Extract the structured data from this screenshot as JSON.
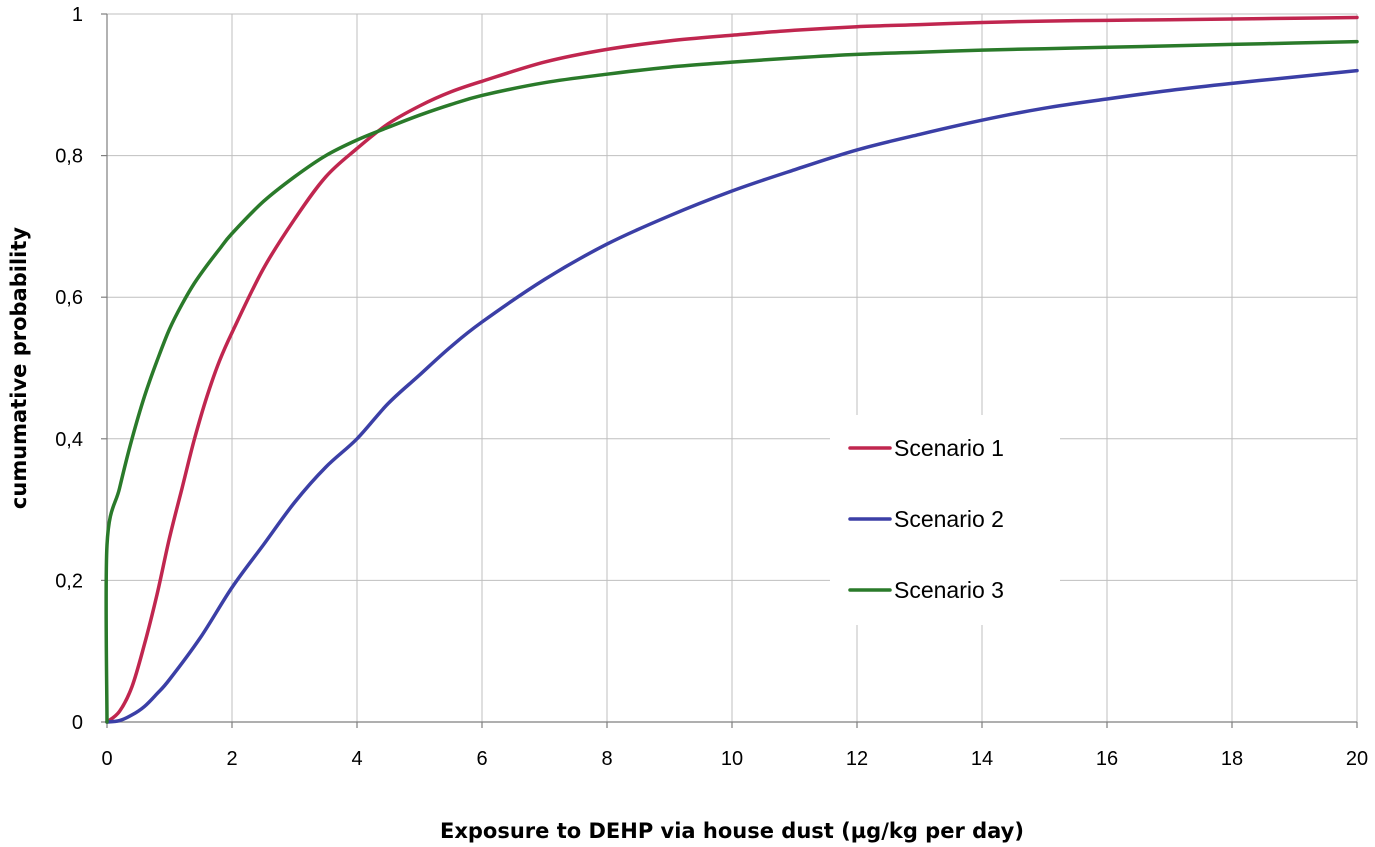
{
  "chart_data": {
    "type": "line",
    "xlabel": "Exposure to DEHP via house dust (µg/kg per day)",
    "ylabel": "cumumative probability",
    "xlim": [
      0,
      20
    ],
    "ylim": [
      0,
      1
    ],
    "x_ticks": [
      0,
      2,
      4,
      6,
      8,
      10,
      12,
      14,
      16,
      18,
      20
    ],
    "x_tick_labels": [
      "0",
      "2",
      "4",
      "6",
      "8",
      "10",
      "12",
      "14",
      "16",
      "18",
      "20"
    ],
    "y_ticks": [
      0,
      0.2,
      0.4,
      0.6,
      0.8,
      1
    ],
    "y_tick_labels": [
      "0",
      "0,2",
      "0,4",
      "0,6",
      "0,8",
      "1"
    ],
    "grid": true,
    "legend": "center-right",
    "series": [
      {
        "name": "Scenario 1",
        "color": "#c0264f",
        "points": [
          [
            0,
            0
          ],
          [
            0.2,
            0.015
          ],
          [
            0.4,
            0.05
          ],
          [
            0.6,
            0.11
          ],
          [
            0.8,
            0.18
          ],
          [
            1,
            0.26
          ],
          [
            1.2,
            0.33
          ],
          [
            1.4,
            0.4
          ],
          [
            1.6,
            0.46
          ],
          [
            1.8,
            0.51
          ],
          [
            2,
            0.55
          ],
          [
            2.5,
            0.64
          ],
          [
            3,
            0.71
          ],
          [
            3.5,
            0.77
          ],
          [
            4,
            0.81
          ],
          [
            4.5,
            0.845
          ],
          [
            5,
            0.87
          ],
          [
            5.5,
            0.89
          ],
          [
            6,
            0.905
          ],
          [
            7,
            0.932
          ],
          [
            8,
            0.95
          ],
          [
            9,
            0.962
          ],
          [
            10,
            0.97
          ],
          [
            11,
            0.977
          ],
          [
            12,
            0.982
          ],
          [
            13,
            0.985
          ],
          [
            14,
            0.988
          ],
          [
            15,
            0.99
          ],
          [
            16,
            0.991
          ],
          [
            17,
            0.992
          ],
          [
            18,
            0.993
          ],
          [
            19,
            0.994
          ],
          [
            20,
            0.995
          ]
        ]
      },
      {
        "name": "Scenario 2",
        "color": "#3b3fa6",
        "points": [
          [
            0,
            0
          ],
          [
            0.2,
            0.002
          ],
          [
            0.4,
            0.01
          ],
          [
            0.6,
            0.022
          ],
          [
            0.8,
            0.04
          ],
          [
            1,
            0.06
          ],
          [
            1.5,
            0.12
          ],
          [
            2,
            0.19
          ],
          [
            2.5,
            0.25
          ],
          [
            3,
            0.31
          ],
          [
            3.5,
            0.36
          ],
          [
            4,
            0.4
          ],
          [
            4.5,
            0.45
          ],
          [
            5,
            0.49
          ],
          [
            5.5,
            0.53
          ],
          [
            6,
            0.565
          ],
          [
            7,
            0.625
          ],
          [
            8,
            0.675
          ],
          [
            9,
            0.715
          ],
          [
            10,
            0.75
          ],
          [
            11,
            0.78
          ],
          [
            12,
            0.808
          ],
          [
            13,
            0.83
          ],
          [
            14,
            0.85
          ],
          [
            15,
            0.867
          ],
          [
            16,
            0.88
          ],
          [
            17,
            0.892
          ],
          [
            18,
            0.902
          ],
          [
            19,
            0.911
          ],
          [
            20,
            0.92
          ]
        ]
      },
      {
        "name": "Scenario 3",
        "color": "#2a7a2a",
        "points": [
          [
            0,
            0
          ],
          [
            0,
            0.25
          ],
          [
            0.2,
            0.33
          ],
          [
            0.4,
            0.4
          ],
          [
            0.6,
            0.46
          ],
          [
            0.8,
            0.51
          ],
          [
            1,
            0.555
          ],
          [
            1.2,
            0.59
          ],
          [
            1.4,
            0.62
          ],
          [
            1.6,
            0.645
          ],
          [
            1.8,
            0.668
          ],
          [
            2,
            0.69
          ],
          [
            2.5,
            0.735
          ],
          [
            3,
            0.77
          ],
          [
            3.5,
            0.8
          ],
          [
            4,
            0.822
          ],
          [
            4.5,
            0.84
          ],
          [
            5,
            0.857
          ],
          [
            5.5,
            0.872
          ],
          [
            6,
            0.885
          ],
          [
            7,
            0.903
          ],
          [
            8,
            0.915
          ],
          [
            9,
            0.925
          ],
          [
            10,
            0.932
          ],
          [
            11,
            0.938
          ],
          [
            12,
            0.943
          ],
          [
            13,
            0.946
          ],
          [
            14,
            0.949
          ],
          [
            15,
            0.951
          ],
          [
            16,
            0.953
          ],
          [
            17,
            0.955
          ],
          [
            18,
            0.957
          ],
          [
            19,
            0.959
          ],
          [
            20,
            0.961
          ]
        ]
      }
    ]
  }
}
